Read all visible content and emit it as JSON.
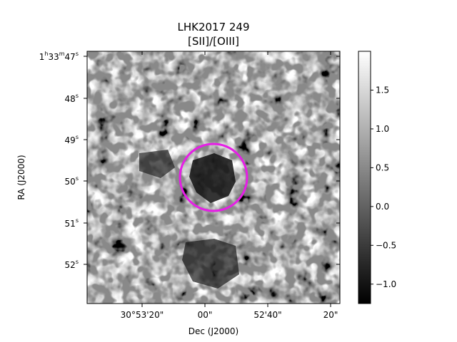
{
  "chart_data": {
    "type": "heatmap",
    "title": "LHK2017 249",
    "subtitle": "[SII]/[OIII]",
    "xlabel": "Dec (J2000)",
    "ylabel": "RA (J2000)",
    "x_ticks": [
      "30°53'20\"",
      "00\"",
      "52'40\"",
      "20\""
    ],
    "y_ticks": [
      {
        "base": "1",
        "h": "h",
        "mid": "33",
        "m": "m",
        "sec": "47",
        "s": "s"
      },
      {
        "base": "48",
        "s": "s"
      },
      {
        "base": "49",
        "s": "s"
      },
      {
        "base": "50",
        "s": "s"
      },
      {
        "base": "51",
        "s": "s"
      },
      {
        "base": "52",
        "s": "s"
      }
    ],
    "colorbar": {
      "colormap": "gray",
      "range": [
        -1.25,
        2.0
      ],
      "ticks": [
        -1.0,
        -0.5,
        0.0,
        0.5,
        1.0,
        1.5
      ],
      "tick_labels": [
        "−1.0",
        "−0.5",
        "0.0",
        "0.5",
        "1.0",
        "1.5"
      ]
    },
    "annotation": {
      "shape": "circle",
      "color": "#e61ee6"
    },
    "grid": false
  }
}
